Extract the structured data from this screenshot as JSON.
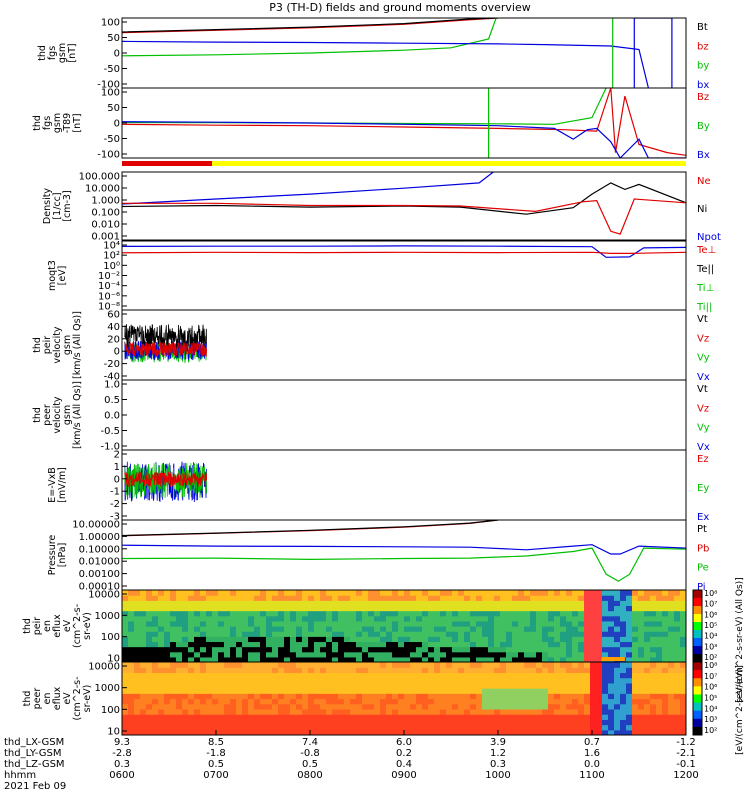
{
  "title": "P3 (TH-D) fields and ground moments overview",
  "colors": {
    "black": "#000000",
    "red": "#e00000",
    "green": "#00c000",
    "blue": "#0000e0",
    "yellow": "#ffff00"
  },
  "x_axis": {
    "ticks": [
      {
        "x": 0,
        "l": [
          "9.3",
          "-2.8",
          "0.3",
          "0600"
        ]
      },
      {
        "x": 1,
        "l": [
          "8.5",
          "-1.8",
          "0.5",
          "0700"
        ]
      },
      {
        "x": 2,
        "l": [
          "7.4",
          "-0.8",
          "0.5",
          "0800"
        ]
      },
      {
        "x": 3,
        "l": [
          "6.0",
          "0.2",
          "0.4",
          "0900"
        ]
      },
      {
        "x": 4,
        "l": [
          "3.9",
          "1.2",
          "0.3",
          "1000"
        ]
      },
      {
        "x": 5,
        "l": [
          "0.7",
          "1.6",
          "0.0",
          "1100"
        ]
      },
      {
        "x": 6,
        "l": [
          "-1.2",
          "-2.1",
          "-0.1",
          "1200"
        ]
      }
    ],
    "row_labels": [
      "thd_LX-GSM",
      "thd_LY-GSM",
      "thd_LZ-GSM",
      "hhmm"
    ],
    "date": "2021 Feb 09"
  },
  "chart_data": [
    {
      "id": "fgs",
      "type": "line",
      "ylabel": [
        "thd",
        "fgs",
        "gsm",
        "[nT]"
      ],
      "ylim": [
        -100,
        100
      ],
      "ticks": [
        "100",
        "50",
        "0",
        "-50",
        "-100"
      ],
      "legend": [
        {
          "t": "Bt",
          "c": "black"
        },
        {
          "t": "bz",
          "c": "red"
        },
        {
          "t": "by",
          "c": "green"
        },
        {
          "t": "bx",
          "c": "blue"
        }
      ],
      "series": [
        {
          "name": "bz",
          "c": "red",
          "pts": [
            [
              0,
              58
            ],
            [
              1,
              65
            ],
            [
              2,
              72
            ],
            [
              3,
              82
            ],
            [
              3.7,
              95
            ],
            [
              4,
              100
            ]
          ]
        },
        {
          "name": "Bt",
          "c": "black",
          "pts": [
            [
              0,
              60
            ],
            [
              1,
              67
            ],
            [
              2,
              74
            ],
            [
              3,
              84
            ],
            [
              3.7,
              97
            ],
            [
              4,
              100
            ]
          ]
        },
        {
          "name": "by",
          "c": "green",
          "pts": [
            [
              0,
              -8
            ],
            [
              1,
              -5
            ],
            [
              2,
              0
            ],
            [
              3,
              8
            ],
            [
              3.5,
              15
            ],
            [
              3.9,
              40
            ],
            [
              3.98,
              100
            ]
          ]
        },
        {
          "name": "bx",
          "c": "blue",
          "pts": [
            [
              0,
              33
            ],
            [
              1,
              31
            ],
            [
              2,
              30
            ],
            [
              3,
              28
            ],
            [
              4,
              26
            ],
            [
              4.5,
              24
            ],
            [
              5.2,
              20
            ],
            [
              5.5,
              10
            ],
            [
              5.6,
              -100
            ]
          ]
        },
        {
          "name": "spike-g",
          "c": "green",
          "pts": [
            [
              5.22,
              -100
            ],
            [
              5.22,
              100
            ]
          ]
        },
        {
          "name": "spike-b",
          "c": "blue",
          "pts": [
            [
              5.45,
              -100
            ],
            [
              5.45,
              100
            ],
            [
              5.85,
              100
            ],
            [
              5.85,
              -100
            ]
          ]
        }
      ]
    },
    {
      "id": "fgs-dif",
      "type": "line",
      "ylabel": [
        "thd",
        "fgs",
        "gsm",
        "-T89",
        "[nT]"
      ],
      "ylim": [
        -130,
        130
      ],
      "ticks": [
        "100",
        "50",
        "0",
        "-50",
        "-100"
      ],
      "legend": [
        {
          "t": "Bz",
          "c": "red"
        },
        {
          "t": "By",
          "c": "green"
        },
        {
          "t": "Bx",
          "c": "blue"
        }
      ],
      "series": [
        {
          "name": "By",
          "c": "green",
          "pts": [
            [
              0,
              2
            ],
            [
              1,
              1
            ],
            [
              2,
              0
            ],
            [
              3,
              -2
            ],
            [
              4,
              -3
            ],
            [
              4.6,
              -5
            ],
            [
              5.0,
              20
            ],
            [
              5.15,
              130
            ]
          ]
        },
        {
          "name": "Bz",
          "c": "red",
          "pts": [
            [
              0,
              -5
            ],
            [
              1,
              -8
            ],
            [
              2,
              -10
            ],
            [
              3,
              -15
            ],
            [
              4,
              -20
            ],
            [
              4.7,
              -25
            ],
            [
              5.05,
              -30
            ],
            [
              5.2,
              130
            ],
            [
              5.25,
              -110
            ],
            [
              5.35,
              100
            ],
            [
              5.5,
              -80
            ],
            [
              5.8,
              -110
            ],
            [
              6,
              -120
            ]
          ]
        },
        {
          "name": "Bx",
          "c": "blue",
          "pts": [
            [
              0,
              5
            ],
            [
              1,
              3
            ],
            [
              2,
              0
            ],
            [
              3,
              -5
            ],
            [
              4,
              -10
            ],
            [
              4.6,
              -20
            ],
            [
              4.8,
              -60
            ],
            [
              4.95,
              -25
            ],
            [
              5.05,
              -20
            ],
            [
              5.2,
              -70
            ],
            [
              5.3,
              -130
            ],
            [
              5.5,
              -60
            ],
            [
              5.6,
              -130
            ],
            [
              6,
              -130
            ]
          ]
        },
        {
          "name": "spike-g",
          "c": "green",
          "pts": [
            [
              3.9,
              -130
            ],
            [
              3.9,
              130
            ]
          ]
        }
      ]
    },
    {
      "id": "density",
      "type": "line",
      "log": true,
      "ylabel": [
        "Density",
        "[1/cc]",
        "[cm-3]"
      ],
      "ylim": [
        0.001,
        300
      ],
      "ticks": [
        "100.000",
        "10.000",
        "1.000",
        "0.100",
        "0.010",
        "0.001"
      ],
      "legend": [
        {
          "t": "Ne",
          "c": "red"
        },
        {
          "t": "Ni",
          "c": "black"
        },
        {
          "t": "Npot",
          "c": "blue"
        }
      ],
      "series": [
        {
          "name": "Npot",
          "c": "blue",
          "pts": [
            [
              0,
              0.8
            ],
            [
              1,
              2
            ],
            [
              2,
              5
            ],
            [
              3,
              15
            ],
            [
              3.8,
              40
            ],
            [
              3.95,
              300
            ]
          ]
        },
        {
          "name": "Ni",
          "c": "black",
          "pts": [
            [
              0,
              0.5
            ],
            [
              1,
              0.6
            ],
            [
              2,
              0.45
            ],
            [
              3,
              0.55
            ],
            [
              3.6,
              0.45
            ],
            [
              4.3,
              0.12
            ],
            [
              4.8,
              0.4
            ],
            [
              5.0,
              5
            ],
            [
              5.2,
              40
            ],
            [
              5.35,
              12
            ],
            [
              5.5,
              30
            ],
            [
              6,
              1
            ]
          ]
        },
        {
          "name": "Ne",
          "c": "red",
          "pts": [
            [
              0,
              0.9
            ],
            [
              1,
              0.9
            ],
            [
              2,
              0.6
            ],
            [
              3,
              0.6
            ],
            [
              3.6,
              0.55
            ],
            [
              4.4,
              0.2
            ],
            [
              4.9,
              1.2
            ],
            [
              5.05,
              1.5
            ],
            [
              5.2,
              0.005
            ],
            [
              5.3,
              0.003
            ],
            [
              5.45,
              2
            ],
            [
              6,
              1
            ]
          ]
        }
      ]
    },
    {
      "id": "temp",
      "type": "line",
      "log": true,
      "ylabel": [
        "moqt3",
        "[eV]"
      ],
      "ylim": [
        1e-09,
        100000.0
      ],
      "ticks": [
        "10⁴",
        "10²",
        "10⁰",
        "10⁻²",
        "10⁻⁴",
        "10⁻⁶",
        "10⁻⁸"
      ],
      "legend": [
        {
          "t": "Te⊥",
          "c": "red"
        },
        {
          "t": "Te||",
          "c": "black"
        },
        {
          "t": "Ti⊥",
          "c": "green"
        },
        {
          "t": "Ti||",
          "c": "green"
        }
      ],
      "series": [
        {
          "name": "Ti",
          "c": "blue",
          "pts": [
            [
              0,
              8000
            ],
            [
              1,
              9000
            ],
            [
              2,
              9000
            ],
            [
              3,
              10000
            ],
            [
              4,
              9000
            ],
            [
              5,
              7000
            ],
            [
              5.15,
              50
            ],
            [
              5.4,
              60
            ],
            [
              5.55,
              4000
            ],
            [
              6,
              5000
            ]
          ]
        },
        {
          "name": "Te",
          "c": "red",
          "pts": [
            [
              0,
              400
            ],
            [
              1,
              500
            ],
            [
              2,
              450
            ],
            [
              3,
              500
            ],
            [
              4,
              450
            ],
            [
              5,
              500
            ],
            [
              5.2,
              300
            ],
            [
              5.4,
              300
            ],
            [
              6,
              500
            ]
          ]
        }
      ]
    },
    {
      "id": "peir-vel",
      "type": "line",
      "ylabel": [
        "thd",
        "peir",
        "velocity",
        "gsm",
        "[km/s (All Qs)]"
      ],
      "ylim": [
        -40,
        60
      ],
      "ticks": [
        "60",
        "40",
        "20",
        "0",
        "-20",
        "-40"
      ],
      "legend": [
        {
          "t": "Vt",
          "c": "black"
        },
        {
          "t": "Vz",
          "c": "red"
        },
        {
          "t": "Vy",
          "c": "green"
        },
        {
          "t": "Vx",
          "c": "blue"
        }
      ],
      "noise": [
        {
          "c": "green",
          "m": 0,
          "a": 15
        },
        {
          "c": "blue",
          "m": 2,
          "a": 14
        },
        {
          "c": "black",
          "m": 22,
          "a": 18
        },
        {
          "c": "red",
          "m": 4,
          "a": 10
        }
      ]
    },
    {
      "id": "peer-vel",
      "type": "line",
      "ylabel": [
        "thd",
        "peer",
        "velocity",
        "gsm",
        "[km/s (All Qs)]"
      ],
      "ylim": [
        -1,
        1
      ],
      "ticks": [
        "1.0",
        "0.5",
        "0.0",
        "-0.5",
        "-1.0"
      ],
      "legend": [
        {
          "t": "Vt",
          "c": "black"
        },
        {
          "t": "Vz",
          "c": "red"
        },
        {
          "t": "Vy",
          "c": "green"
        },
        {
          "t": "Vx",
          "c": "blue"
        }
      ]
    },
    {
      "id": "efield",
      "type": "line",
      "ylabel": [
        "E=-VxB",
        "[mV/m]"
      ],
      "ylim": [
        -3,
        2.5
      ],
      "ticks": [
        "2",
        "1",
        "0",
        "-1",
        "-2",
        "-3"
      ],
      "legend": [
        {
          "t": "Ez",
          "c": "red"
        },
        {
          "t": "Ey",
          "c": "green"
        },
        {
          "t": "Ex",
          "c": "blue"
        }
      ],
      "noise": [
        {
          "c": "blue",
          "m": 0,
          "a": 1.6
        },
        {
          "c": "green",
          "m": 0.1,
          "a": 1.4
        },
        {
          "c": "red",
          "m": 0.2,
          "a": 0.6
        }
      ]
    },
    {
      "id": "pressure",
      "type": "line",
      "log": true,
      "ylabel": [
        "Pressure",
        "[nPa]"
      ],
      "ylim": [
        2e-05,
        30
      ],
      "ticks": [
        "10.00000",
        "1.00000",
        "0.10000",
        "0.01000",
        "0.00100",
        "0.00010"
      ],
      "legend": [
        {
          "t": "Pt",
          "c": "black"
        },
        {
          "t": "Pb",
          "c": "red"
        },
        {
          "t": "Pe",
          "c": "green"
        },
        {
          "t": "Pi",
          "c": "blue"
        }
      ],
      "series": [
        {
          "name": "Pb",
          "c": "red",
          "pts": [
            [
              0,
              1.2
            ],
            [
              1,
              2
            ],
            [
              2,
              3.5
            ],
            [
              3,
              7
            ],
            [
              3.7,
              15
            ],
            [
              4,
              30
            ]
          ]
        },
        {
          "name": "Pt",
          "c": "black",
          "pts": [
            [
              0,
              1.3
            ],
            [
              1,
              2.1
            ],
            [
              2,
              3.7
            ],
            [
              3,
              7.5
            ],
            [
              3.7,
              16
            ],
            [
              4,
              30
            ]
          ]
        },
        {
          "name": "Pi",
          "c": "blue",
          "pts": [
            [
              0,
              0.18
            ],
            [
              1,
              0.15
            ],
            [
              2,
              0.14
            ],
            [
              3,
              0.13
            ],
            [
              3.7,
              0.12
            ],
            [
              4.3,
              0.07
            ],
            [
              4.8,
              0.15
            ],
            [
              5.0,
              0.2
            ],
            [
              5.2,
              0.03
            ],
            [
              5.3,
              0.03
            ],
            [
              5.5,
              0.15
            ],
            [
              6,
              0.1
            ]
          ]
        },
        {
          "name": "Pe",
          "c": "green",
          "pts": [
            [
              0,
              0.012
            ],
            [
              1,
              0.013
            ],
            [
              2,
              0.01
            ],
            [
              3,
              0.012
            ],
            [
              3.7,
              0.013
            ],
            [
              4.3,
              0.02
            ],
            [
              4.8,
              0.05
            ],
            [
              5.0,
              0.1
            ],
            [
              5.15,
              0.0005
            ],
            [
              5.28,
              0.00012
            ],
            [
              5.4,
              0.0005
            ],
            [
              5.55,
              0.1
            ],
            [
              6,
              0.08
            ]
          ]
        }
      ]
    },
    {
      "id": "peir-spec",
      "type": "heatmap",
      "ylabel": [
        "thd",
        "peir",
        "en",
        "eflux",
        "eV",
        "(cm^2-s-",
        "sr-eV)"
      ],
      "ticks": [
        "10000",
        "1000",
        "100",
        "10"
      ],
      "ylim": [
        5,
        25000
      ],
      "log": true
    },
    {
      "id": "peer-spec",
      "type": "heatmap",
      "ylabel": [
        "thd",
        "peer",
        "en",
        "eflux",
        "eV",
        "(cm^2-s-",
        "sr-eV)"
      ],
      "ticks": [
        "10000",
        "1000",
        "100",
        "10"
      ],
      "ylim": [
        5,
        25000
      ],
      "log": true
    }
  ],
  "colorbar": {
    "ticks": [
      "10⁸",
      "10⁷",
      "10⁶",
      "10⁵",
      "10⁴",
      "10³",
      "10²"
    ],
    "ticks2": [
      "10⁸",
      "10⁷",
      "10⁶",
      "10⁵",
      "10⁴",
      "10³",
      "10²"
    ],
    "label": "[eV/(cm^2-s-sr-eV)]",
    "label_top": "[eV/(cm^2-s-sr-eV) (All Qs)]"
  }
}
